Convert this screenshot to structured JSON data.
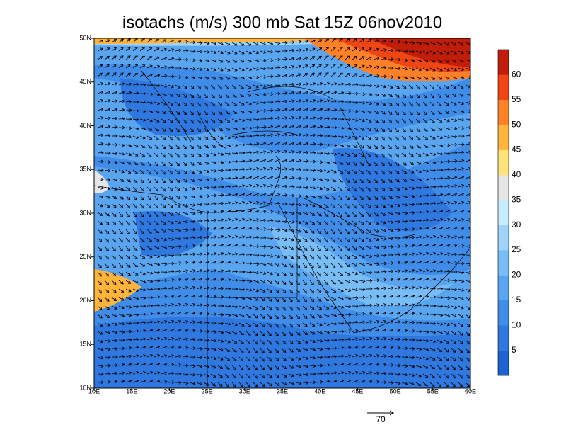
{
  "title": "isotachs (m/s) 300 mb Sat 15Z 06nov2010",
  "lat_labels": [
    "10N",
    "15N",
    "20N",
    "25N",
    "30N",
    "35N",
    "40N",
    "45N",
    "50N"
  ],
  "lon_labels": [
    "10E",
    "15E",
    "20E",
    "25E",
    "30E",
    "35E",
    "40E",
    "45E",
    "50E",
    "55E",
    "60E"
  ],
  "colorbar": {
    "levels": [
      5,
      10,
      15,
      20,
      25,
      30,
      35,
      40,
      45,
      50,
      55,
      60
    ],
    "colors": [
      "#1f62d4",
      "#2e78df",
      "#3f8de8",
      "#5aa5f0",
      "#78bdf6",
      "#9fd3fa",
      "#c6ecff",
      "#e6e6e6",
      "#ffe27a",
      "#ffb43c",
      "#ff8228",
      "#f04614",
      "#c01e0a"
    ]
  },
  "reference_vector": "70"
}
